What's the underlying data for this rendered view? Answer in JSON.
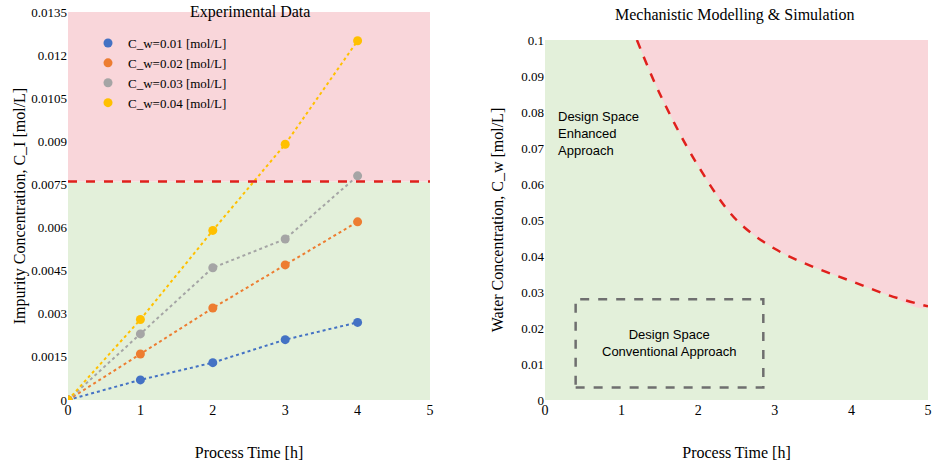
{
  "chart_data": [
    {
      "type": "scatter",
      "title": "Experimental Data",
      "x_label": "Process Time [h]",
      "y_label": "Impurity Concentration, C_I [mol/L]",
      "xlim": [
        0,
        5
      ],
      "xticks": [
        0,
        1,
        2,
        3,
        4,
        5
      ],
      "ylim": [
        0,
        0.0135
      ],
      "yticks": [
        0,
        0.0015,
        0.003,
        0.0045,
        0.006,
        0.0075,
        0.009,
        0.0105,
        0.012,
        0.0135
      ],
      "grid": false,
      "legend": "upper left",
      "marker": "circle",
      "line_style": "dotted",
      "x": [
        0,
        1,
        2,
        3,
        4
      ],
      "series": [
        {
          "name": "C_w=0.01 [mol/L]",
          "color": "#4472c4",
          "values": [
            0,
            0.0007,
            0.0013,
            0.0021,
            0.0027
          ]
        },
        {
          "name": "C_w=0.02 [mol/L]",
          "color": "#ed7d31",
          "values": [
            0,
            0.0016,
            0.0032,
            0.0047,
            0.0062
          ]
        },
        {
          "name": "C_w=0.03 [mol/L]",
          "color": "#a5a5a5",
          "values": [
            0,
            0.0023,
            0.0046,
            0.0056,
            0.0078
          ]
        },
        {
          "name": "C_w=0.04 [mol/L]",
          "color": "#ffc000",
          "values": [
            0,
            0.0028,
            0.0059,
            0.0089,
            0.0125
          ]
        }
      ],
      "limit": {
        "value": 0.0076,
        "color": "#e0201c",
        "line_style": "dashed"
      }
    },
    {
      "type": "line",
      "title": "Mechanistic Modelling & Simulation",
      "x_label": "Process Time [h]",
      "y_label": "Water Concentration, C_w [mol/L]",
      "xlim": [
        0,
        5
      ],
      "xticks": [
        0,
        1,
        2,
        3,
        4,
        5
      ],
      "ylim": [
        0,
        0.1
      ],
      "yticks": [
        0,
        0.01,
        0.02,
        0.03,
        0.04,
        0.05,
        0.06,
        0.07,
        0.08,
        0.09,
        0.1
      ],
      "grid": false,
      "series": [
        {
          "color": "#e0201c",
          "line_style": "dashed",
          "x": [
            1.2,
            1.5,
            2,
            2.5,
            3,
            3.5,
            4,
            4.5,
            5
          ],
          "values": [
            0.1,
            0.085,
            0.065,
            0.05,
            0.042,
            0.037,
            0.033,
            0.029,
            0.026
          ]
        }
      ],
      "annotations": [
        {
          "lines": [
            "Design Space",
            "Enhanced",
            "Approach"
          ],
          "x": 0.15,
          "y": 0.074
        }
      ],
      "conventional_space": {
        "lines": [
          "Design Space",
          "Conventional Approach"
        ],
        "x": [
          0.4,
          2.85
        ],
        "y": [
          0.0035,
          0.028
        ]
      }
    }
  ]
}
